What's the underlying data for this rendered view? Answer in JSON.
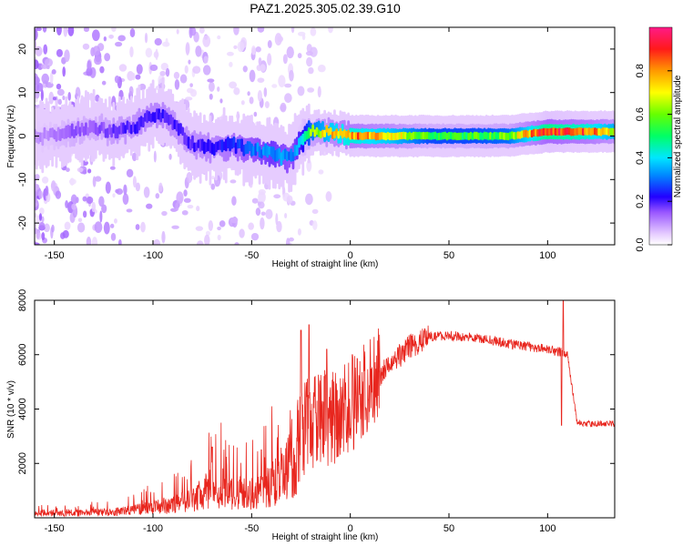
{
  "title": "PAZ1.2025.305.02.39.G10",
  "chart_data": [
    {
      "type": "heatmap",
      "xlabel": "Height of straight line (km)",
      "ylabel": "Frequency (Hz)",
      "xlim": [
        -160,
        134
      ],
      "ylim": [
        -25,
        25
      ],
      "xticks": [
        -150,
        -100,
        -50,
        0,
        50,
        100
      ],
      "yticks": [
        -20,
        -10,
        0,
        10,
        20
      ],
      "colorbar": {
        "label": "Normalized spectral amplitude",
        "range": [
          0,
          1
        ],
        "ticks": [
          "0.0",
          "0.2",
          "0.4",
          "0.6",
          "0.8"
        ]
      },
      "ridge": {
        "height_km": [
          -160,
          -150,
          -140,
          -130,
          -120,
          -110,
          -100,
          -95,
          -90,
          -80,
          -70,
          -60,
          -50,
          -40,
          -30,
          -25,
          -20,
          -10,
          0,
          10,
          20,
          40,
          60,
          80,
          100,
          120,
          134
        ],
        "frequency_hz": [
          0,
          0,
          1,
          2,
          1,
          2,
          5,
          5,
          3,
          -2,
          -3,
          -2,
          -3,
          -4,
          -5,
          -1,
          1,
          1,
          0,
          0,
          0,
          0,
          0,
          0,
          1,
          1,
          1
        ],
        "amplitude": [
          0.1,
          0.12,
          0.15,
          0.15,
          0.18,
          0.2,
          0.22,
          0.22,
          0.2,
          0.2,
          0.22,
          0.25,
          0.3,
          0.35,
          0.3,
          0.4,
          0.6,
          0.75,
          0.85,
          0.8,
          0.75,
          0.55,
          0.55,
          0.6,
          0.95,
          0.85,
          0.7
        ]
      }
    },
    {
      "type": "line",
      "xlabel": "Height of straight line (km)",
      "ylabel": "SNR (10 * v/v)",
      "xlim": [
        -160,
        134
      ],
      "ylim": [
        0,
        8000
      ],
      "xticks": [
        -150,
        -100,
        -50,
        0,
        50,
        100
      ],
      "yticks": [
        2000,
        4000,
        6000,
        8000
      ],
      "color": "#e8261e",
      "series": [
        {
          "name": "SNR",
          "x": [
            -160,
            -140,
            -120,
            -110,
            -100,
            -90,
            -80,
            -70,
            -60,
            -50,
            -40,
            -30,
            -25,
            -20,
            -10,
            0,
            10,
            20,
            30,
            40,
            50,
            60,
            70,
            80,
            90,
            100,
            106,
            108,
            110,
            115,
            120,
            134
          ],
          "y": [
            150,
            180,
            220,
            300,
            400,
            500,
            700,
            1200,
            1000,
            900,
            1300,
            2000,
            3000,
            3500,
            3700,
            4000,
            4900,
            5600,
            6300,
            6650,
            6700,
            6650,
            6550,
            6400,
            6300,
            6200,
            6100,
            6050,
            6000,
            3500,
            3450,
            3450
          ]
        }
      ],
      "spikes": [
        {
          "x": -70,
          "y": 2600
        },
        {
          "x": -45,
          "y": 2500
        },
        {
          "x": -25,
          "y": 6900
        },
        {
          "x": -21,
          "y": 7100
        },
        {
          "x": -12,
          "y": 6200
        },
        {
          "x": 1,
          "y": 6000
        },
        {
          "x": 107,
          "y": 3400
        },
        {
          "x": 108,
          "y": 8000
        }
      ]
    }
  ]
}
